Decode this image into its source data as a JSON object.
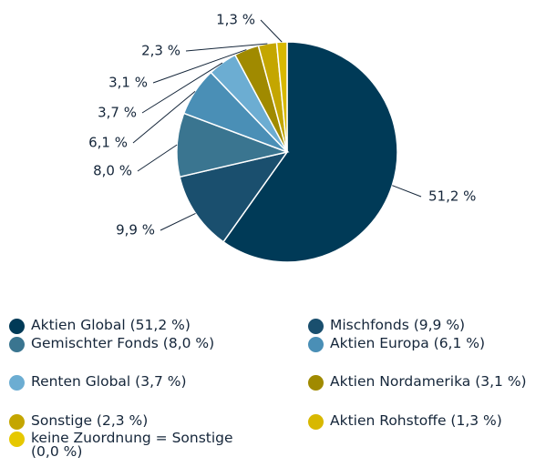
{
  "chart_data": {
    "type": "pie",
    "categories": [
      "Aktien Global (51,2 %)",
      "Mischfonds (9,9 %)",
      "Gemischter Fonds (8,0 %)",
      "Aktien Europa (6,1 %)",
      "Renten Global (3,7 %)",
      "Aktien Nordamerika (3,1 %)",
      "Sonstige (2,3 %)",
      "Aktien Rohstoffe (1,3 %)",
      "keine Zuordnung = Sonstige (0,0 %)"
    ],
    "values": [
      51.2,
      9.9,
      8.0,
      6.1,
      3.7,
      3.1,
      2.3,
      1.3,
      0.0
    ],
    "value_labels": [
      "51,2 %",
      "9,9 %",
      "8,0 %",
      "6,1 %",
      "3,7 %",
      "3,1 %",
      "2,3 %",
      "1,3 %",
      null
    ],
    "colors": [
      "#003a57",
      "#1a4f6e",
      "#3a7590",
      "#4a8fb6",
      "#6cadd2",
      "#a08a00",
      "#c4a600",
      "#d8b800",
      "#e6c800"
    ]
  }
}
